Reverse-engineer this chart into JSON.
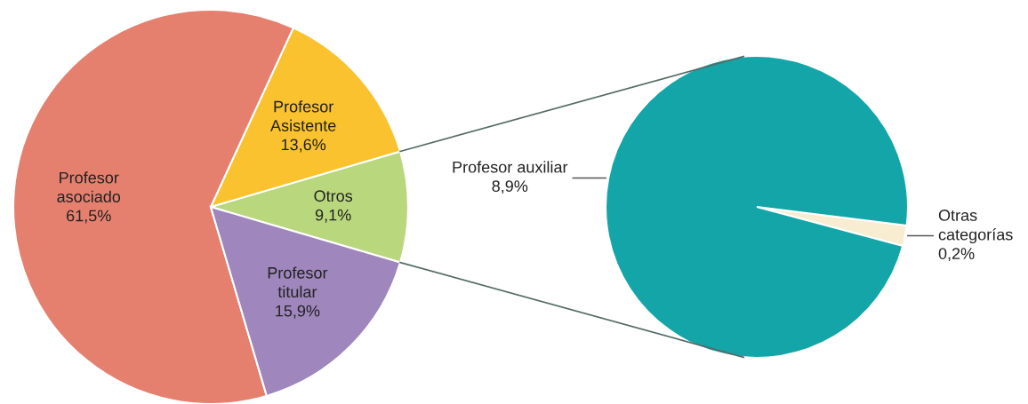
{
  "chart_data": [
    {
      "type": "pie",
      "categories": [
        "Otros",
        "Profesor\nAsistente",
        "Profesor\nasociado",
        "Profesor\ntitular"
      ],
      "values": [
        9.1,
        13.6,
        61.5,
        15.9
      ],
      "colors": [
        "#b9d77c",
        "#f9c22e",
        "#e5806f",
        "#9f86bc"
      ],
      "value_labels": [
        "9,1%",
        "13,6%",
        "61,5%",
        "15,9%"
      ]
    },
    {
      "type": "pie",
      "categories": [
        "Otras\ncategorías",
        "Profesor auxiliar"
      ],
      "values": [
        0.2,
        8.9
      ],
      "colors": [
        "#f8edd0",
        "#14a5a8"
      ],
      "value_labels": [
        "0,2%",
        "8,9%"
      ]
    }
  ]
}
